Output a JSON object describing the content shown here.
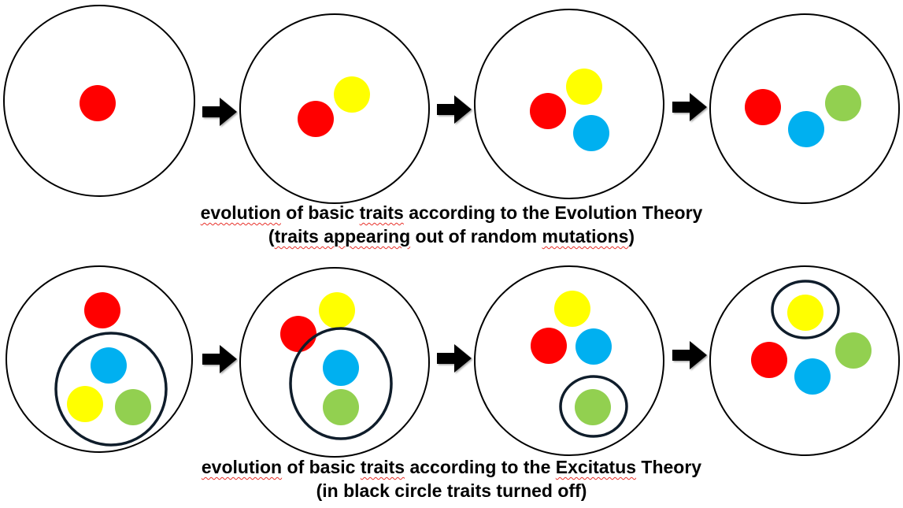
{
  "colors": {
    "red": "#ff0000",
    "yellow": "#ffff00",
    "blue": "#00b0f0",
    "green": "#92d050",
    "outline": "#000000",
    "off_ring": "#0f1d2b"
  },
  "evolution_theory": {
    "caption_line1_parts": [
      {
        "text": "evolution",
        "spell": true
      },
      {
        "text": " of basic ",
        "spell": false
      },
      {
        "text": "traits",
        "spell": true
      },
      {
        "text": " according to the Evolution Theory",
        "spell": false
      }
    ],
    "caption_line2_parts": [
      {
        "text": "(",
        "spell": false
      },
      {
        "text": "traits appearing",
        "spell": true
      },
      {
        "text": " out of random ",
        "spell": false
      },
      {
        "text": "mutations",
        "spell": true
      },
      {
        "text": ")",
        "spell": false
      }
    ],
    "stages": [
      {
        "traits": [
          {
            "color": "red",
            "on": true
          }
        ]
      },
      {
        "traits": [
          {
            "color": "red",
            "on": true
          },
          {
            "color": "yellow",
            "on": true
          }
        ]
      },
      {
        "traits": [
          {
            "color": "red",
            "on": true
          },
          {
            "color": "yellow",
            "on": true
          },
          {
            "color": "blue",
            "on": true
          }
        ]
      },
      {
        "traits": [
          {
            "color": "red",
            "on": true
          },
          {
            "color": "blue",
            "on": true
          },
          {
            "color": "green",
            "on": true
          }
        ]
      }
    ]
  },
  "excitatus_theory": {
    "caption_line1_parts": [
      {
        "text": "evolution",
        "spell": true
      },
      {
        "text": " of basic ",
        "spell": false
      },
      {
        "text": "traits",
        "spell": true
      },
      {
        "text": " according to the ",
        "spell": false
      },
      {
        "text": "Excitatus",
        "spell": true
      },
      {
        "text": " Theory",
        "spell": false
      }
    ],
    "caption_line2_parts": [
      {
        "text": "(in black circle traits turned off)",
        "spell": false
      }
    ],
    "stages": [
      {
        "traits": [
          {
            "color": "red",
            "on": true
          },
          {
            "color": "blue",
            "on": false
          },
          {
            "color": "yellow",
            "on": false
          },
          {
            "color": "green",
            "on": false
          }
        ]
      },
      {
        "traits": [
          {
            "color": "red",
            "on": true
          },
          {
            "color": "yellow",
            "on": true
          },
          {
            "color": "blue",
            "on": false
          },
          {
            "color": "green",
            "on": false
          }
        ]
      },
      {
        "traits": [
          {
            "color": "yellow",
            "on": true
          },
          {
            "color": "red",
            "on": true
          },
          {
            "color": "blue",
            "on": true
          },
          {
            "color": "green",
            "on": false
          }
        ]
      },
      {
        "traits": [
          {
            "color": "yellow",
            "on": false
          },
          {
            "color": "red",
            "on": true
          },
          {
            "color": "blue",
            "on": true
          },
          {
            "color": "green",
            "on": true
          }
        ]
      }
    ]
  }
}
